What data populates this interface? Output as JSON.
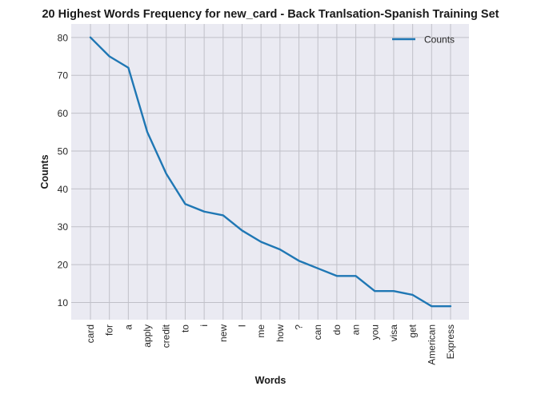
{
  "chart_data": {
    "type": "line",
    "title": "20 Highest Words Frequency for new_card - Back Tranlsation-Spanish Training Set",
    "xlabel": "Words",
    "ylabel": "Counts",
    "categories": [
      "card",
      "for",
      "a",
      "apply",
      "credit",
      "to",
      "i",
      "new",
      "I",
      "me",
      "how",
      "?",
      "can",
      "do",
      "an",
      "you",
      "visa",
      "get",
      "American",
      "Express"
    ],
    "series": [
      {
        "name": "Counts",
        "values": [
          80,
          75,
          72,
          55,
          44,
          36,
          34,
          33,
          29,
          26,
          24,
          21,
          19,
          17,
          17,
          13,
          13,
          12,
          9,
          9
        ]
      }
    ],
    "yticks": [
      10,
      20,
      30,
      40,
      50,
      60,
      70,
      80
    ],
    "ylim": [
      5.45,
      83.55
    ],
    "grid": true,
    "legend_position": "upper right",
    "colors": {
      "line": "#1f77b4",
      "plot_bg": "#eaeaf2",
      "grid": "#c0c0c8"
    }
  }
}
